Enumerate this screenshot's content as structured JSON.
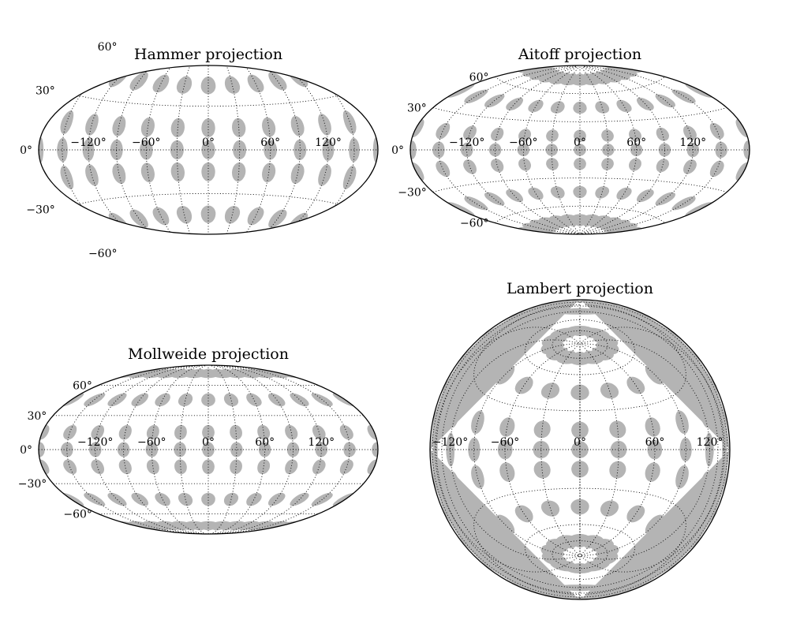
{
  "chart_data": [
    {
      "type": "map",
      "projection": "hammer",
      "title": "Hammer projection",
      "longitude_ticks": [
        -120,
        -60,
        0,
        60,
        120
      ],
      "longitude_labels": [
        "−120°",
        "−60°",
        "0°",
        "60°",
        "120°"
      ],
      "latitude_ticks": [
        60,
        30,
        0,
        -30,
        -60
      ],
      "latitude_labels": [
        "60°",
        "30°",
        "0°",
        "−30°",
        "−60°"
      ],
      "gridlines": "dotted, every 30°",
      "markers": {
        "longitudes": [
          -180,
          -150,
          -120,
          -90,
          -60,
          -30,
          0,
          30,
          60,
          90,
          120,
          150,
          180
        ],
        "latitudes": [
          -75,
          -45,
          -15,
          0,
          15,
          45,
          75
        ],
        "color": "#b4b4b4"
      }
    },
    {
      "type": "map",
      "projection": "aitoff",
      "title": "Aitoff projection",
      "longitude_ticks": [
        -120,
        -60,
        0,
        60,
        120
      ],
      "longitude_labels": [
        "−120°",
        "−60°",
        "0°",
        "60°",
        "120°"
      ],
      "latitude_ticks": [
        60,
        30,
        0,
        -30,
        -60
      ],
      "latitude_labels": [
        "60°",
        "30°",
        "0°",
        "−30°",
        "−60°"
      ],
      "gridlines": "dotted, every 30°",
      "markers": {
        "longitudes": [
          -180,
          -150,
          -120,
          -90,
          -60,
          -30,
          0,
          30,
          60,
          90,
          120,
          150,
          180
        ],
        "latitudes": [
          -75,
          -45,
          -15,
          0,
          15,
          45,
          75
        ],
        "color": "#b4b4b4"
      }
    },
    {
      "type": "map",
      "projection": "mollweide",
      "title": "Mollweide projection",
      "longitude_ticks": [
        -120,
        -60,
        0,
        60,
        120
      ],
      "longitude_labels": [
        "−120°",
        "−60°",
        "0°",
        "60°",
        "120°"
      ],
      "latitude_ticks": [
        60,
        30,
        0,
        -30,
        -60
      ],
      "latitude_labels": [
        "60°",
        "30°",
        "0°",
        "−30°",
        "−60°"
      ],
      "gridlines": "dotted, every 30°",
      "markers": {
        "longitudes": [
          -180,
          -150,
          -120,
          -90,
          -60,
          -30,
          0,
          30,
          60,
          90,
          120,
          150,
          180
        ],
        "latitudes": [
          -75,
          -45,
          -15,
          0,
          15,
          45,
          75
        ],
        "color": "#b4b4b4"
      }
    },
    {
      "type": "map",
      "projection": "lambert",
      "title": "Lambert projection",
      "longitude_ticks": [
        -120,
        -60,
        0,
        60,
        120
      ],
      "longitude_labels": [
        "−120°",
        "−60°",
        "0°",
        "60°",
        "120°"
      ],
      "latitude_ticks": [],
      "latitude_labels": [],
      "gridlines": "dotted, every 30°",
      "markers": {
        "longitudes": [
          -180,
          -150,
          -120,
          -90,
          -60,
          -30,
          0,
          30,
          60,
          90,
          120,
          150,
          180
        ],
        "latitudes": [
          -75,
          -45,
          -15,
          0,
          15,
          45,
          75
        ],
        "color": "#b4b4b4"
      }
    }
  ]
}
